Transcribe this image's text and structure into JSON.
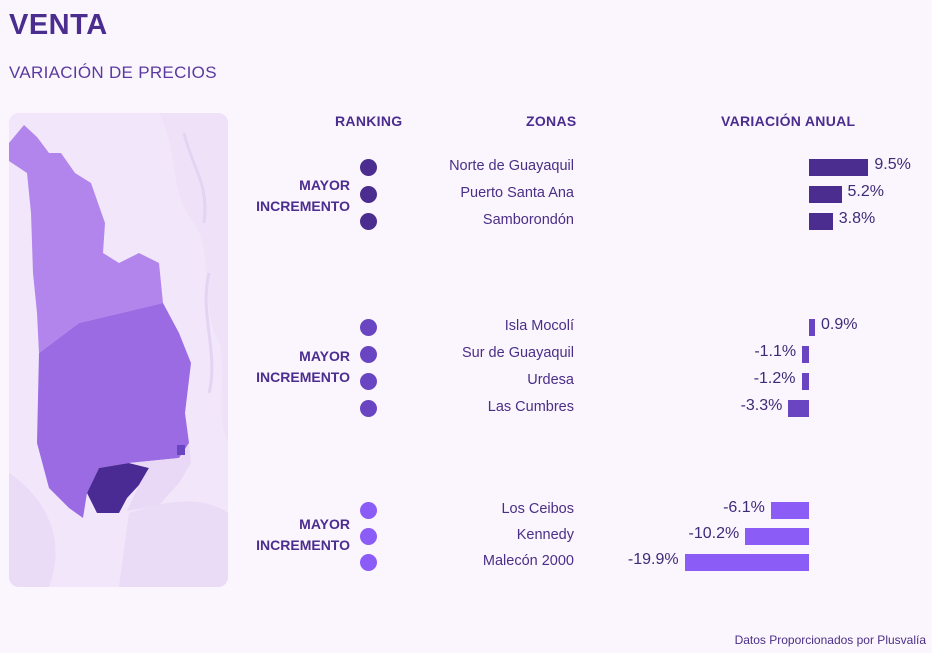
{
  "header": {
    "title": "VENTA",
    "subtitle": "VARIACIÓN DE PRECIOS"
  },
  "columns": {
    "ranking": "RANKING",
    "zonas": "ZONAS",
    "variacion": "VARIACIÓN ANUAL"
  },
  "footer": "Datos Proporcionados por Plusvalía",
  "colors": {
    "dark": "#4b2d8f",
    "mid": "#6a45c2",
    "light": "#8b5cf6",
    "bar_dark": "#4b2d8f"
  },
  "chart_data": {
    "type": "bar",
    "orientation": "horizontal",
    "unit": "%",
    "groups": [
      {
        "label_line1": "MAYOR",
        "label_line2": "INCREMENTO",
        "color": "#4b2d8f",
        "zones": [
          "Norte de Guayaquil",
          "Puerto Santa Ana",
          "Samborondón"
        ],
        "values": [
          9.5,
          5.2,
          3.8
        ],
        "labels": [
          "9.5%",
          "5.2%",
          "3.8%"
        ]
      },
      {
        "label_line1": "MAYOR",
        "label_line2": "INCREMENTO",
        "color": "#6a45c2",
        "zones": [
          "Isla Mocolí",
          "Sur de Guayaquil",
          "Urdesa",
          "Las Cumbres"
        ],
        "values": [
          0.9,
          -1.1,
          -1.2,
          -3.3
        ],
        "labels": [
          "0.9%",
          "-1.1%",
          "-1.2%",
          "-3.3%"
        ]
      },
      {
        "label_line1": "MAYOR",
        "label_line2": "INCREMENTO",
        "color": "#8b5cf6",
        "zones": [
          "Los Ceibos",
          "Kennedy",
          "Malecón 2000"
        ],
        "values": [
          -6.1,
          -10.2,
          -19.9
        ],
        "labels": [
          "-6.1%",
          "-10.2%",
          "-19.9%"
        ]
      }
    ]
  }
}
